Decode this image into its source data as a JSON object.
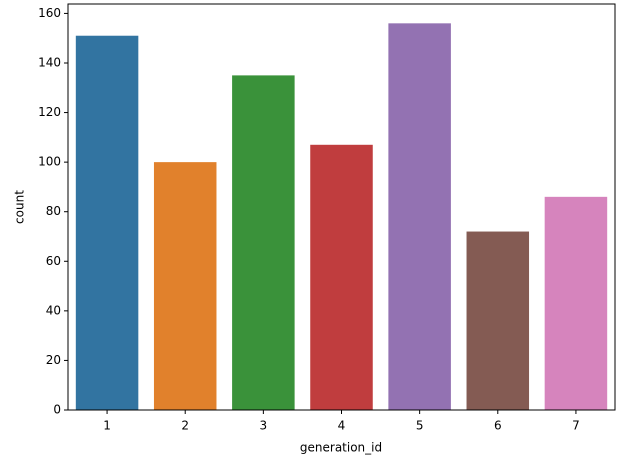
{
  "chart_data": {
    "type": "bar",
    "x_label": "generation_id",
    "y_label": "count",
    "categories": [
      "1",
      "2",
      "3",
      "4",
      "5",
      "6",
      "7"
    ],
    "values": [
      151,
      100,
      135,
      107,
      156,
      72,
      86
    ],
    "colors": [
      "#3274a1",
      "#e1812c",
      "#3a923a",
      "#c03d3e",
      "#9372b2",
      "#845b53",
      "#d684bd"
    ],
    "ylim": [
      0,
      163.8
    ],
    "yticks": [
      0,
      20,
      40,
      60,
      80,
      100,
      120,
      140,
      160
    ],
    "grid": false
  }
}
